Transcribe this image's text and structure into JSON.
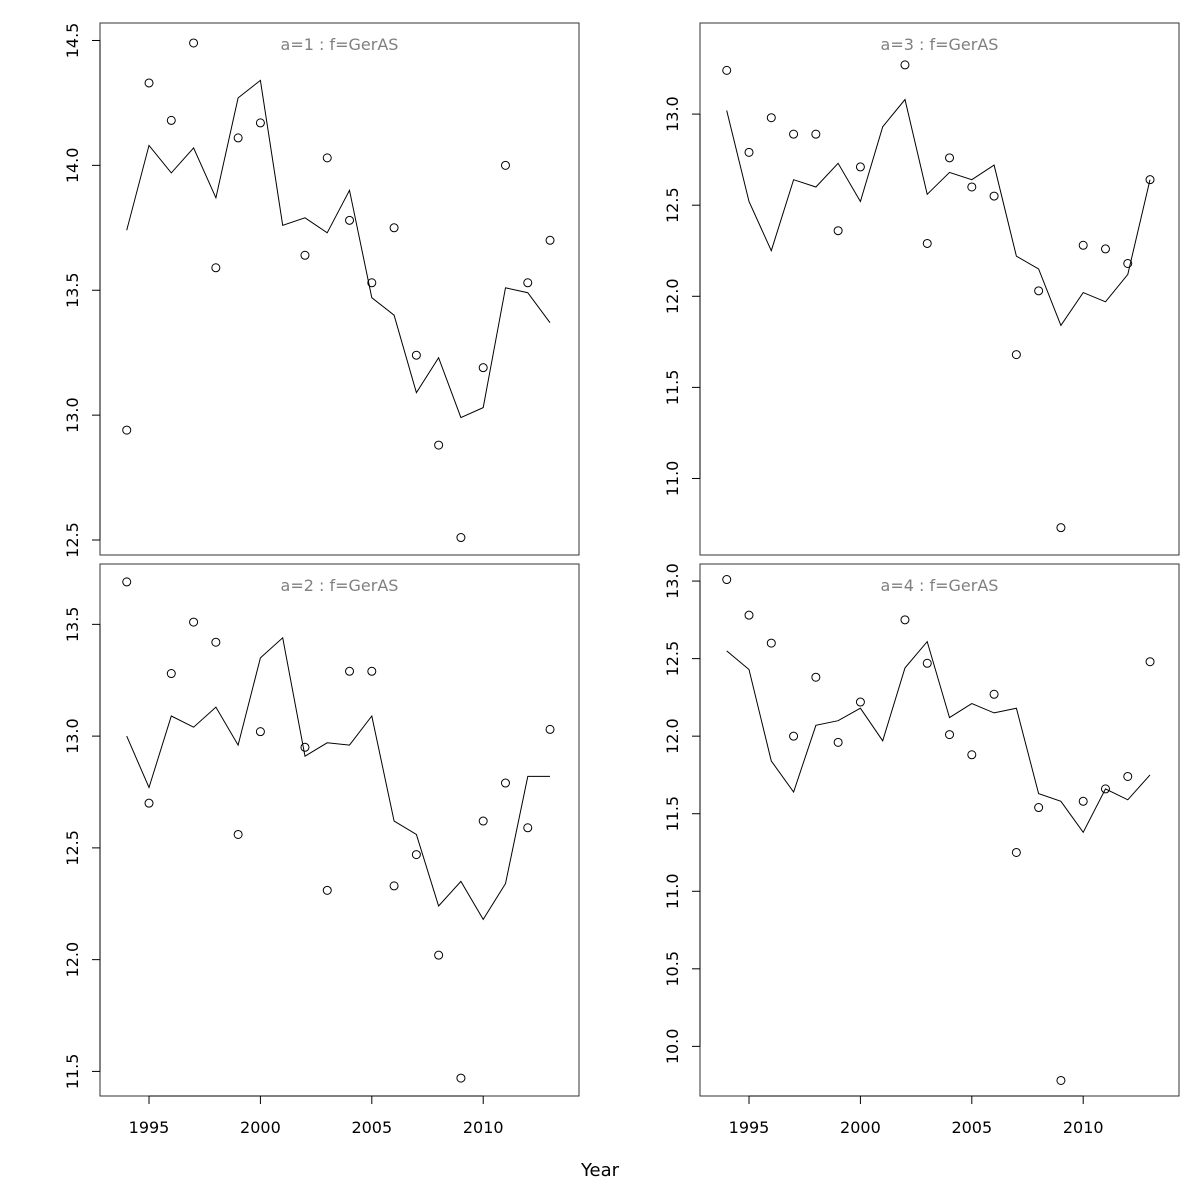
{
  "chart_data": {
    "type": "scatter",
    "xlabel": "Year",
    "colors": {
      "points": "#000000",
      "line": "#000000",
      "panel_title": "#808080",
      "frame": "#333333"
    },
    "x_ticks": [
      1995,
      2000,
      2005,
      2010
    ],
    "xlim": [
      1992.8,
      2014.3
    ],
    "panels": [
      {
        "title": "a=1  :  f=GerAS",
        "years": [
          1994,
          1995,
          1996,
          1997,
          1998,
          1999,
          2000,
          2001,
          2002,
          2003,
          2004,
          2005,
          2006,
          2007,
          2008,
          2009,
          2010,
          2011,
          2012,
          2013
        ],
        "observed": [
          12.94,
          14.33,
          14.18,
          14.49,
          13.59,
          14.11,
          14.17,
          null,
          13.64,
          14.03,
          13.78,
          13.53,
          13.75,
          13.24,
          12.88,
          12.51,
          13.19,
          14.0,
          13.53,
          13.7
        ],
        "fitted": [
          13.74,
          14.08,
          13.97,
          14.07,
          13.87,
          14.27,
          14.34,
          13.76,
          13.79,
          13.73,
          13.9,
          13.47,
          13.4,
          13.09,
          13.23,
          12.99,
          13.03,
          13.51,
          13.49,
          13.37
        ],
        "ylim": [
          12.44,
          14.57
        ],
        "y_ticks": [
          12.5,
          13.0,
          13.5,
          14.0,
          14.5
        ],
        "y_tick_labels": [
          "12.5",
          "13.0",
          "13.5",
          "14.0",
          "14.5"
        ]
      },
      {
        "title": "a=3  :  f=GerAS",
        "years": [
          1994,
          1995,
          1996,
          1997,
          1998,
          1999,
          2000,
          2001,
          2002,
          2003,
          2004,
          2005,
          2006,
          2007,
          2008,
          2009,
          2010,
          2011,
          2012,
          2013
        ],
        "observed": [
          13.24,
          12.79,
          12.98,
          12.89,
          12.89,
          12.36,
          12.71,
          null,
          13.27,
          12.29,
          12.76,
          12.6,
          12.55,
          11.68,
          12.03,
          10.73,
          12.28,
          12.26,
          12.18,
          12.64
        ],
        "fitted": [
          13.02,
          12.52,
          12.25,
          12.64,
          12.6,
          12.73,
          12.52,
          12.93,
          13.08,
          12.56,
          12.68,
          12.64,
          12.72,
          12.22,
          12.15,
          11.84,
          12.02,
          11.97,
          12.12,
          12.64
        ],
        "ylim": [
          10.58,
          13.5
        ],
        "y_ticks": [
          11.0,
          11.5,
          12.0,
          12.5,
          13.0
        ],
        "y_tick_labels": [
          "11.0",
          "11.5",
          "12.0",
          "12.5",
          "13.0"
        ]
      },
      {
        "title": "a=2  :  f=GerAS",
        "years": [
          1994,
          1995,
          1996,
          1997,
          1998,
          1999,
          2000,
          2001,
          2002,
          2003,
          2004,
          2005,
          2006,
          2007,
          2008,
          2009,
          2010,
          2011,
          2012,
          2013
        ],
        "observed": [
          13.69,
          12.7,
          13.28,
          13.51,
          13.42,
          12.56,
          13.02,
          null,
          12.95,
          12.31,
          13.29,
          13.29,
          12.33,
          12.47,
          12.02,
          11.47,
          12.62,
          12.79,
          12.59,
          13.03
        ],
        "fitted": [
          13.0,
          12.77,
          13.09,
          13.04,
          13.13,
          12.96,
          13.35,
          13.44,
          12.91,
          12.97,
          12.96,
          13.09,
          12.62,
          12.56,
          12.24,
          12.35,
          12.18,
          12.34,
          12.82,
          12.82
        ],
        "ylim": [
          11.39,
          13.77
        ],
        "y_ticks": [
          11.5,
          12.0,
          12.5,
          13.0,
          13.5
        ],
        "y_tick_labels": [
          "11.5",
          "12.0",
          "12.5",
          "13.0",
          "13.5"
        ]
      },
      {
        "title": "a=4  :  f=GerAS",
        "years": [
          1994,
          1995,
          1996,
          1997,
          1998,
          1999,
          2000,
          2001,
          2002,
          2003,
          2004,
          2005,
          2006,
          2007,
          2008,
          2009,
          2010,
          2011,
          2012,
          2013
        ],
        "observed": [
          13.01,
          12.78,
          12.6,
          12.0,
          12.38,
          11.96,
          12.22,
          null,
          12.75,
          12.47,
          12.01,
          11.88,
          12.27,
          11.25,
          11.54,
          9.78,
          11.58,
          11.66,
          11.74,
          12.48
        ],
        "fitted": [
          12.55,
          12.43,
          11.84,
          11.64,
          12.07,
          12.1,
          12.18,
          11.97,
          12.44,
          12.61,
          12.12,
          12.21,
          12.15,
          12.18,
          11.63,
          11.58,
          11.38,
          11.66,
          11.59,
          11.75
        ],
        "ylim": [
          9.68,
          13.11
        ],
        "y_ticks": [
          10.0,
          10.5,
          11.0,
          11.5,
          12.0,
          12.5,
          13.0
        ],
        "y_tick_labels": [
          "10.0",
          "10.5",
          "11.0",
          "11.5",
          "12.0",
          "12.5",
          "13.0"
        ]
      }
    ]
  }
}
